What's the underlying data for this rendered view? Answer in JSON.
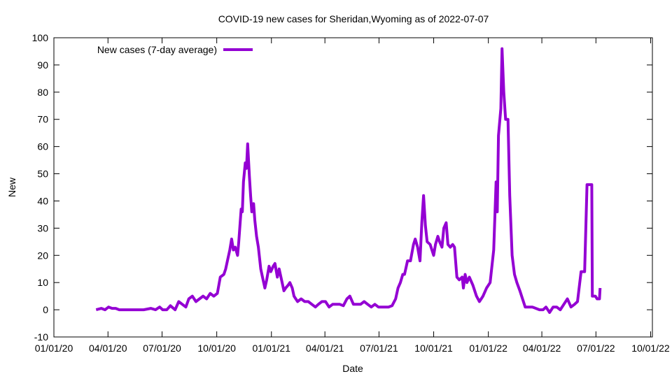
{
  "chart_data": {
    "type": "line",
    "title": "COVID-19 new cases for Sheridan,Wyoming as of 2022-07-07",
    "xlabel": "Date",
    "ylabel": "New",
    "x_unit": "days since 2020-01-01",
    "xlim": [
      0,
      1007
    ],
    "ylim": [
      -10,
      100
    ],
    "yticks": [
      -10,
      0,
      10,
      20,
      30,
      40,
      50,
      60,
      70,
      80,
      90,
      100
    ],
    "xticks": [
      0,
      91,
      182,
      274,
      366,
      456,
      547,
      639,
      731,
      821,
      912,
      1004
    ],
    "xtick_labels": [
      "01/01/20",
      "04/01/20",
      "07/01/20",
      "10/01/20",
      "01/01/21",
      "04/01/21",
      "07/01/21",
      "10/01/21",
      "01/01/22",
      "04/01/22",
      "07/01/22",
      "10/01/22"
    ],
    "legend": "top-left",
    "grid": false,
    "color": "#9400d3",
    "series": [
      {
        "name": "New cases (7-day average)",
        "x": [
          71,
          80,
          86,
          92,
          98,
          104,
          110,
          151,
          163,
          171,
          178,
          183,
          190,
          196,
          204,
          210,
          216,
          222,
          227,
          233,
          239,
          245,
          251,
          257,
          263,
          269,
          275,
          280,
          286,
          289,
          292,
          296,
          299,
          302,
          305,
          309,
          311,
          315,
          317,
          319,
          322,
          324,
          326,
          329,
          331,
          333,
          336,
          338,
          341,
          344,
          348,
          351,
          355,
          358,
          362,
          365,
          369,
          372,
          376,
          379,
          383,
          387,
          390,
          394,
          397,
          401,
          404,
          410,
          416,
          422,
          428,
          434,
          440,
          445,
          451,
          457,
          463,
          469,
          475,
          481,
          487,
          493,
          498,
          504,
          510,
          516,
          522,
          528,
          534,
          540,
          546,
          551,
          563,
          569,
          575,
          579,
          583,
          587,
          590,
          595,
          600,
          605,
          608,
          612,
          616,
          619,
          622,
          625,
          628,
          633,
          636,
          639,
          642,
          646,
          649,
          653,
          656,
          660,
          663,
          667,
          671,
          674,
          678,
          682,
          687,
          689,
          692,
          695,
          699,
          705,
          711,
          716,
          722,
          728,
          734,
          740,
          744,
          746,
          748,
          752,
          754,
          757,
          760,
          764,
          767,
          771,
          775,
          779,
          784,
          787,
          793,
          799,
          805,
          811,
          817,
          823,
          828,
          834,
          840,
          846,
          852,
          858,
          864,
          870,
          876,
          881,
          887,
          893,
          897,
          905,
          906,
          911,
          914,
          918,
          919
        ],
        "y": [
          0,
          0.5,
          0,
          1,
          0.5,
          0.5,
          0,
          0,
          0.5,
          0,
          1,
          0,
          0,
          1.5,
          0,
          3,
          2,
          1,
          4,
          5,
          3,
          4,
          5,
          4,
          6,
          5,
          6,
          12,
          13,
          15,
          18,
          22,
          26,
          22,
          23,
          20,
          25,
          37,
          36,
          47,
          54,
          52,
          61,
          49,
          42,
          36,
          39,
          33,
          27,
          23,
          15,
          12,
          8,
          11,
          16,
          14,
          16,
          17,
          12,
          15,
          11,
          7,
          8,
          9,
          10,
          8,
          5,
          3,
          4,
          3,
          3,
          2,
          1,
          2,
          3,
          3,
          1,
          2,
          2,
          2,
          1.5,
          4,
          5,
          2,
          2,
          2,
          3,
          2,
          1,
          2,
          1,
          1,
          1,
          1.5,
          4,
          8,
          10,
          13,
          13,
          18,
          18,
          24,
          26,
          23,
          18,
          32,
          42,
          31,
          25,
          24,
          22,
          20,
          24,
          27,
          25,
          23,
          30,
          32,
          24,
          23,
          24,
          23,
          12,
          11,
          12,
          8,
          13,
          10,
          12,
          9,
          5,
          3,
          5,
          8,
          10,
          22,
          47,
          36,
          64,
          74,
          96,
          80,
          70,
          70,
          42,
          20,
          13,
          10,
          7,
          5,
          1,
          1,
          1,
          0.5,
          0,
          0,
          1,
          -1,
          1,
          1,
          0,
          2,
          4,
          1,
          2,
          3,
          14,
          14,
          46,
          46,
          5,
          5,
          4,
          4,
          8
        ]
      }
    ]
  }
}
